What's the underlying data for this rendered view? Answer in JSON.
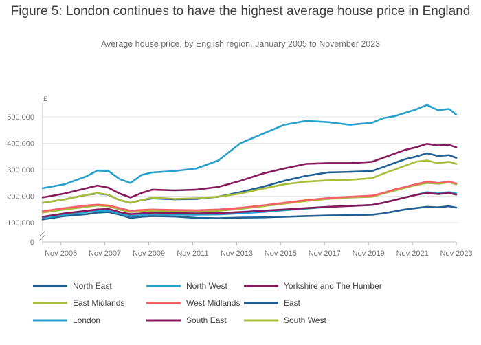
{
  "title": "Figure 5: London continues to have the highest average house price in England",
  "subtitle": "Average house price, by English region, January 2005 to November 2023",
  "chart_data": {
    "type": "line",
    "title": "Figure 5: London continues to have the highest average house price in England",
    "subtitle": "Average house price, by English region, January 2005 to November 2023",
    "ylabel": "£",
    "ylim": [
      0,
      560000
    ],
    "axis_break": "between 0 and 100,000",
    "grid": true,
    "legend_position": "bottom",
    "x_ticks": [
      "Nov 2005",
      "Nov 2007",
      "Nov 2009",
      "Nov 2011",
      "Nov 2013",
      "Nov 2015",
      "Nov 2017",
      "Nov 2019",
      "Nov 2021",
      "Nov 2023"
    ],
    "y_ticks": [
      "0",
      "100,000",
      "200,000",
      "300,000",
      "400,000",
      "500,000"
    ],
    "x": [
      2005.0,
      2006.0,
      2007.0,
      2007.5,
      2008.0,
      2008.5,
      2009.0,
      2009.5,
      2010.0,
      2011.0,
      2012.0,
      2013.0,
      2014.0,
      2015.0,
      2016.0,
      2017.0,
      2018.0,
      2019.0,
      2020.0,
      2020.5,
      2021.0,
      2021.5,
      2022.0,
      2022.5,
      2023.0,
      2023.5,
      2023.83
    ],
    "series": [
      {
        "name": "North East",
        "color": "#206095",
        "values": [
          112000,
          125000,
          132000,
          138000,
          140000,
          130000,
          118000,
          122000,
          125000,
          123000,
          118000,
          117000,
          119000,
          120000,
          122000,
          125000,
          127000,
          128000,
          130000,
          135000,
          142000,
          150000,
          155000,
          160000,
          158000,
          162000,
          157000
        ]
      },
      {
        "name": "North West",
        "color": "#27a0cc",
        "values": [
          117000,
          130000,
          140000,
          145000,
          145000,
          135000,
          125000,
          128000,
          132000,
          130000,
          130000,
          131000,
          135000,
          140000,
          147000,
          153000,
          160000,
          163000,
          167000,
          175000,
          185000,
          195000,
          205000,
          215000,
          210000,
          215000,
          210000
        ]
      },
      {
        "name": "Yorkshire and The Humber",
        "color": "#871a5b",
        "values": [
          122000,
          135000,
          145000,
          150000,
          152000,
          140000,
          132000,
          135000,
          138000,
          136000,
          135000,
          136000,
          140000,
          145000,
          150000,
          155000,
          160000,
          163000,
          167000,
          175000,
          185000,
          195000,
          205000,
          212000,
          208000,
          212000,
          206000
        ]
      },
      {
        "name": "East Midlands",
        "color": "#a8bd3a",
        "values": [
          138000,
          150000,
          160000,
          165000,
          162000,
          150000,
          140000,
          143000,
          145000,
          143000,
          142000,
          145000,
          152000,
          162000,
          172000,
          182000,
          190000,
          195000,
          198000,
          210000,
          220000,
          232000,
          242000,
          250000,
          247000,
          252000,
          245000
        ]
      },
      {
        "name": "West Midlands",
        "color": "#f66068",
        "values": [
          143000,
          155000,
          165000,
          168000,
          165000,
          155000,
          145000,
          148000,
          150000,
          148000,
          147000,
          150000,
          156000,
          165000,
          175000,
          185000,
          193000,
          198000,
          202000,
          212000,
          225000,
          235000,
          245000,
          255000,
          250000,
          255000,
          248000
        ]
      },
      {
        "name": "East",
        "color": "#206095",
        "values": [
          175000,
          188000,
          205000,
          210000,
          205000,
          185000,
          175000,
          185000,
          192000,
          188000,
          190000,
          198000,
          215000,
          235000,
          258000,
          277000,
          290000,
          292000,
          295000,
          310000,
          325000,
          340000,
          350000,
          362000,
          352000,
          355000,
          345000
        ]
      },
      {
        "name": "London",
        "color": "#27a0cc",
        "values": [
          230000,
          245000,
          275000,
          297000,
          295000,
          265000,
          250000,
          280000,
          290000,
          295000,
          305000,
          335000,
          400000,
          435000,
          470000,
          485000,
          480000,
          470000,
          478000,
          495000,
          502000,
          515000,
          528000,
          545000,
          525000,
          530000,
          508000
        ]
      },
      {
        "name": "South East",
        "color": "#871a5b",
        "values": [
          195000,
          210000,
          230000,
          240000,
          232000,
          210000,
          195000,
          212000,
          225000,
          222000,
          225000,
          235000,
          258000,
          285000,
          305000,
          322000,
          325000,
          325000,
          330000,
          345000,
          360000,
          375000,
          385000,
          398000,
          392000,
          394000,
          385000
        ]
      },
      {
        "name": "South West",
        "color": "#a8bd3a",
        "values": [
          175000,
          188000,
          205000,
          212000,
          205000,
          185000,
          175000,
          185000,
          195000,
          190000,
          192000,
          198000,
          210000,
          228000,
          245000,
          255000,
          260000,
          262000,
          268000,
          285000,
          300000,
          315000,
          330000,
          335000,
          325000,
          330000,
          322000
        ]
      }
    ]
  }
}
